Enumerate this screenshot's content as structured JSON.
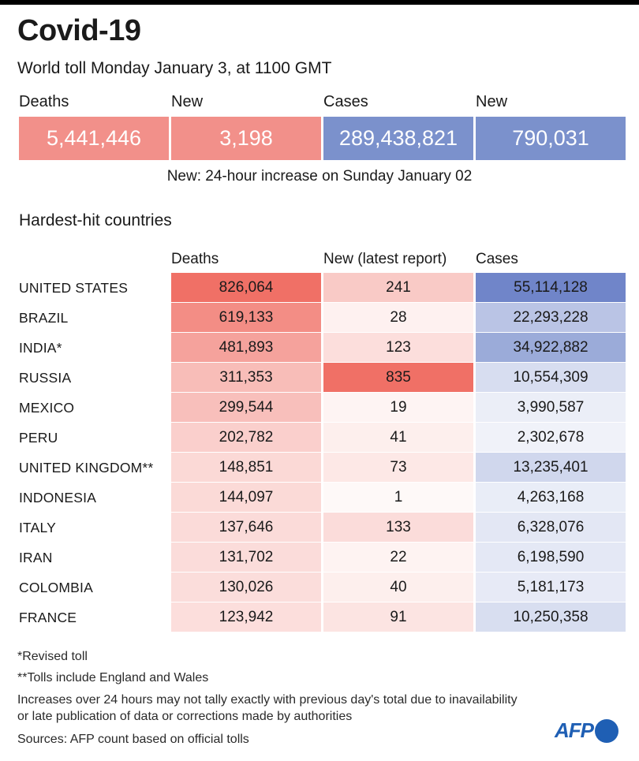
{
  "header": {
    "title": "Covid-19",
    "subtitle": "World toll Monday January 3, at 1100 GMT"
  },
  "summary": {
    "labels": [
      "Deaths",
      "New",
      "Cases",
      "New"
    ],
    "values": [
      "5,441,446",
      "3,198",
      "289,438,821",
      "790,031"
    ],
    "note": "New: 24-hour increase on Sunday January 02"
  },
  "section_title": "Hardest-hit countries",
  "colors": {
    "deaths_strong": "#f08a82",
    "cases_strong": "#7b91cc"
  },
  "chart_data": {
    "type": "table",
    "title": "Hardest-hit countries",
    "columns": [
      "Deaths",
      "New (latest report)",
      "Cases"
    ],
    "rows": [
      {
        "country": "UNITED STATES",
        "deaths": "826,064",
        "new": "241",
        "cases": "55,114,128"
      },
      {
        "country": "BRAZIL",
        "deaths": "619,133",
        "new": "28",
        "cases": "22,293,228"
      },
      {
        "country": "INDIA*",
        "deaths": "481,893",
        "new": "123",
        "cases": "34,922,882"
      },
      {
        "country": "RUSSIA",
        "deaths": "311,353",
        "new": "835",
        "cases": "10,554,309"
      },
      {
        "country": "MEXICO",
        "deaths": "299,544",
        "new": "19",
        "cases": "3,990,587"
      },
      {
        "country": "PERU",
        "deaths": "202,782",
        "new": "41",
        "cases": "2,302,678"
      },
      {
        "country": "UNITED KINGDOM**",
        "deaths": "148,851",
        "new": "73",
        "cases": "13,235,401"
      },
      {
        "country": "INDONESIA",
        "deaths": "144,097",
        "new": "1",
        "cases": "4,263,168"
      },
      {
        "country": "ITALY",
        "deaths": "137,646",
        "new": "133",
        "cases": "6,328,076"
      },
      {
        "country": "IRAN",
        "deaths": "131,702",
        "new": "22",
        "cases": "6,198,590"
      },
      {
        "country": "COLOMBIA",
        "deaths": "130,026",
        "new": "40",
        "cases": "5,181,173"
      },
      {
        "country": "FRANCE",
        "deaths": "123,942",
        "new": "91",
        "cases": "10,250,358"
      }
    ]
  },
  "footnotes": [
    "*Revised toll",
    "**Tolls include England and Wales",
    "Increases over 24 hours may not tally exactly with previous day's total due to inavailability",
    "or late publication of data or corrections made by authorities",
    "Sources: AFP count based on official tolls"
  ],
  "logo": "AFP"
}
